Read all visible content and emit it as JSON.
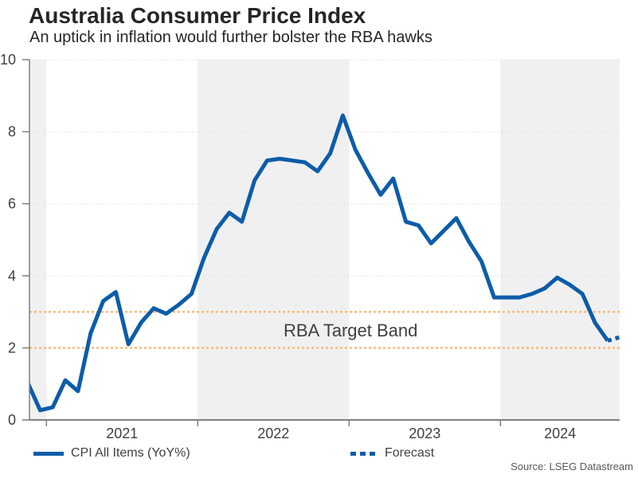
{
  "header": {
    "title": "Australia Consumer Price Index",
    "subtitle": "An uptick in inflation would further bolster the RBA hawks"
  },
  "source_note": "Source: LSEG Datastream",
  "legend": {
    "items": [
      {
        "label": "CPI All Items (YoY%)",
        "style": "solid-line"
      },
      {
        "label": "Forecast",
        "style": "dotted-line"
      }
    ]
  },
  "colors": {
    "line": "#0D5CA9",
    "target_band_line": "#FBB977",
    "year_shade": "#F0F0F0",
    "gridline": "#D6D6D6",
    "axis": "#808080",
    "tick_label": "#404040",
    "title_text": "#262626",
    "source_text": "#595959"
  },
  "chart_data": {
    "type": "line",
    "title": "Australia Consumer Price Index",
    "subtitle": "An uptick in inflation would further bolster the RBA hawks",
    "ylim": [
      0,
      10
    ],
    "y_ticks": [
      0,
      2,
      4,
      6,
      8,
      10
    ],
    "x_tick_years": [
      2021,
      2022,
      2023,
      2024
    ],
    "shaded_years": [
      2020,
      2022,
      2024
    ],
    "x_range_note": "monthly data, Nov 2020 - Sep 2024 actual, Oct 2024 forecast",
    "grid": "dotted horizontal at 4,6,8,10",
    "legend_position": "bottom",
    "target_band": {
      "low": 2,
      "high": 3,
      "label": "RBA Target Band"
    },
    "series": [
      {
        "name": "CPI All Items (YoY%)",
        "start": "2020-11",
        "freq": "monthly",
        "values": [
          1.05,
          0.27,
          0.35,
          1.1,
          0.8,
          2.4,
          3.3,
          3.55,
          2.1,
          2.7,
          3.1,
          2.95,
          3.2,
          3.5,
          4.5,
          5.3,
          5.75,
          5.5,
          6.65,
          7.2,
          7.25,
          7.2,
          7.15,
          6.9,
          7.4,
          8.45,
          7.5,
          6.85,
          6.25,
          6.7,
          5.5,
          5.4,
          4.9,
          5.25,
          5.6,
          4.95,
          4.4,
          3.4,
          3.4,
          3.4,
          3.5,
          3.65,
          3.95,
          3.75,
          3.5,
          2.7,
          2.2
        ]
      },
      {
        "name": "Forecast",
        "start": "2024-10",
        "freq": "monthly",
        "values": [
          2.3
        ]
      }
    ]
  }
}
